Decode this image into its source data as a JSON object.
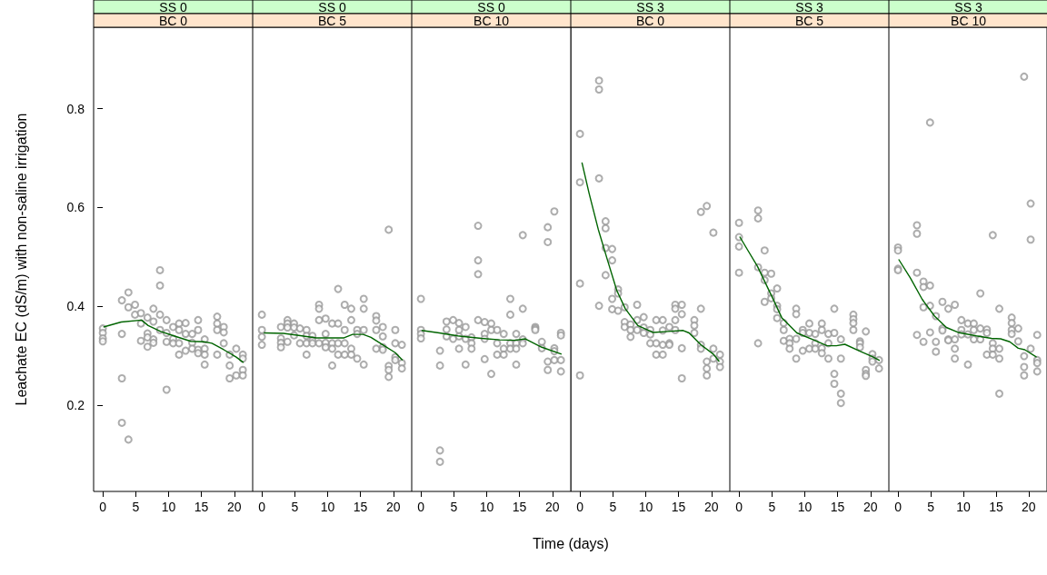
{
  "chart_data": [
    {
      "type": "scatter",
      "title": "SS 0",
      "subtitle": "BC 0",
      "ylabel": "Leachate EC (dS/m) with non-saline irrigation",
      "xlim": [
        -1.4,
        22.8
      ],
      "xticks": [
        0,
        5,
        10,
        15,
        20
      ],
      "ylim": [
        0.025,
        0.965
      ],
      "yticks": [
        0.2,
        0.4,
        0.6,
        0.8
      ],
      "grid": false,
      "series": [
        {
          "type": "scatter",
          "marker": "circle",
          "color": "#999999",
          "x": [
            0,
            0,
            0,
            0,
            2.9,
            2.9,
            2.9,
            2.9,
            3.9,
            3.9,
            3.9,
            4.9,
            4.9,
            5.8,
            5.8,
            5.8,
            6.8,
            6.8,
            6.8,
            6.8,
            7.7,
            7.7,
            7.7,
            7.7,
            8.7,
            8.7,
            8.7,
            8.7,
            9.7,
            9.7,
            9.7,
            9.7,
            10.7,
            10.7,
            10.7,
            11.6,
            11.6,
            11.6,
            11.6,
            12.6,
            12.6,
            12.6,
            13.6,
            13.6,
            13.6,
            14.5,
            14.5,
            14.5,
            14.5,
            15.5,
            15.5,
            15.5,
            15.5,
            17.4,
            17.4,
            17.4,
            17.4,
            18.4,
            18.4,
            18.4,
            19.3,
            19.3,
            19.3,
            20.3,
            20.3,
            21.3,
            21.3,
            21.3,
            21.3
          ],
          "values": [
            0.355,
            0.346,
            0.335,
            0.329,
            0.412,
            0.344,
            0.254,
            0.164,
            0.428,
            0.398,
            0.13,
            0.403,
            0.383,
            0.386,
            0.365,
            0.33,
            0.377,
            0.345,
            0.337,
            0.318,
            0.395,
            0.369,
            0.333,
            0.326,
            0.473,
            0.442,
            0.383,
            0.352,
            0.372,
            0.346,
            0.328,
            0.231,
            0.358,
            0.334,
            0.325,
            0.365,
            0.352,
            0.325,
            0.302,
            0.366,
            0.344,
            0.31,
            0.344,
            0.326,
            0.314,
            0.372,
            0.352,
            0.312,
            0.305,
            0.333,
            0.314,
            0.302,
            0.282,
            0.379,
            0.365,
            0.352,
            0.302,
            0.358,
            0.347,
            0.325,
            0.302,
            0.28,
            0.254,
            0.314,
            0.26,
            0.302,
            0.294,
            0.271,
            0.26
          ]
        },
        {
          "type": "line",
          "color": "#006400",
          "x": [
            0.1,
            2.8,
            5.9,
            6.9,
            8.8,
            10.6,
            13.4,
            15.4,
            16.6,
            18.4,
            20.3,
            21.4
          ],
          "values": [
            0.358,
            0.368,
            0.372,
            0.361,
            0.349,
            0.341,
            0.329,
            0.328,
            0.325,
            0.312,
            0.297,
            0.286
          ]
        }
      ]
    },
    {
      "type": "scatter",
      "title": "SS 0",
      "subtitle": "BC 5",
      "xlim": [
        -1.4,
        22.8
      ],
      "xticks": [
        0,
        5,
        10,
        15,
        20
      ],
      "ylim": [
        0.025,
        0.965
      ],
      "yticks": [
        0.2,
        0.4,
        0.6,
        0.8
      ],
      "tick_labels": "x",
      "grid": false,
      "series": [
        {
          "type": "scatter",
          "marker": "circle",
          "color": "#999999",
          "x": [
            0,
            0,
            0,
            0,
            2.9,
            2.9,
            2.9,
            2.9,
            3.9,
            3.9,
            3.9,
            3.9,
            4.9,
            4.9,
            4.9,
            5.8,
            5.8,
            6.8,
            6.8,
            6.8,
            6.8,
            7.7,
            7.7,
            7.7,
            8.7,
            8.7,
            8.7,
            8.7,
            9.7,
            9.7,
            9.7,
            9.7,
            10.7,
            10.7,
            10.7,
            10.7,
            11.6,
            11.6,
            11.6,
            11.6,
            12.6,
            12.6,
            12.6,
            12.6,
            13.6,
            13.6,
            13.6,
            13.6,
            14.5,
            14.5,
            14.5,
            15.5,
            15.5,
            15.5,
            15.5,
            17.4,
            17.4,
            17.4,
            17.4,
            18.4,
            18.4,
            18.4,
            18.4,
            19.3,
            19.3,
            19.3,
            19.3,
            20.3,
            20.3,
            20.3,
            20.3,
            21.3,
            21.3,
            21.3
          ],
          "values": [
            0.383,
            0.352,
            0.338,
            0.322,
            0.358,
            0.335,
            0.326,
            0.317,
            0.372,
            0.365,
            0.357,
            0.328,
            0.365,
            0.357,
            0.341,
            0.355,
            0.325,
            0.352,
            0.34,
            0.325,
            0.302,
            0.34,
            0.331,
            0.325,
            0.403,
            0.395,
            0.372,
            0.325,
            0.375,
            0.344,
            0.326,
            0.317,
            0.365,
            0.325,
            0.314,
            0.28,
            0.435,
            0.365,
            0.325,
            0.302,
            0.403,
            0.352,
            0.325,
            0.302,
            0.395,
            0.372,
            0.314,
            0.302,
            0.352,
            0.344,
            0.294,
            0.415,
            0.395,
            0.352,
            0.282,
            0.38,
            0.371,
            0.352,
            0.314,
            0.358,
            0.339,
            0.317,
            0.312,
            0.555,
            0.279,
            0.271,
            0.257,
            0.352,
            0.325,
            0.297,
            0.291,
            0.322,
            0.285,
            0.274
          ]
        },
        {
          "type": "line",
          "color": "#006400",
          "x": [
            0.3,
            3.3,
            5.6,
            8.3,
            12.5,
            13.8,
            15.4,
            16.6,
            18.4,
            20.3,
            21.4
          ],
          "values": [
            0.346,
            0.345,
            0.341,
            0.336,
            0.336,
            0.343,
            0.343,
            0.337,
            0.322,
            0.306,
            0.291
          ]
        }
      ]
    },
    {
      "type": "scatter",
      "title": "SS 0",
      "subtitle": "BC 10",
      "xlabel": "Time (days)",
      "xlim": [
        -1.4,
        22.8
      ],
      "xticks": [
        0,
        5,
        10,
        15,
        20
      ],
      "ylim": [
        0.025,
        0.965
      ],
      "yticks": [
        0.2,
        0.4,
        0.6,
        0.8
      ],
      "tick_labels": "x",
      "grid": false,
      "series": [
        {
          "type": "scatter",
          "marker": "circle",
          "color": "#999999",
          "x": [
            0,
            0,
            0,
            0,
            2.9,
            2.9,
            2.9,
            2.9,
            3.9,
            3.9,
            3.9,
            4.9,
            4.9,
            5.8,
            5.8,
            5.8,
            5.8,
            6.8,
            6.8,
            6.8,
            7.7,
            7.7,
            7.7,
            8.7,
            8.7,
            8.7,
            8.7,
            9.7,
            9.7,
            9.7,
            9.7,
            10.7,
            10.7,
            10.7,
            11.6,
            11.6,
            11.6,
            12.6,
            12.6,
            12.6,
            13.6,
            13.6,
            13.6,
            13.6,
            14.5,
            14.5,
            14.5,
            14.5,
            15.5,
            15.5,
            15.5,
            15.5,
            17.4,
            17.4,
            17.4,
            18.4,
            18.4,
            19.3,
            19.3,
            19.3,
            19.3,
            20.3,
            20.3,
            20.3,
            20.3,
            21.3,
            21.3,
            21.3,
            21.3
          ],
          "values": [
            0.415,
            0.352,
            0.344,
            0.335,
            0.31,
            0.28,
            0.108,
            0.085,
            0.369,
            0.353,
            0.339,
            0.372,
            0.334,
            0.366,
            0.352,
            0.339,
            0.314,
            0.358,
            0.334,
            0.282,
            0.337,
            0.325,
            0.314,
            0.563,
            0.493,
            0.465,
            0.372,
            0.368,
            0.344,
            0.334,
            0.293,
            0.365,
            0.352,
            0.263,
            0.352,
            0.325,
            0.302,
            0.344,
            0.314,
            0.302,
            0.415,
            0.383,
            0.325,
            0.314,
            0.344,
            0.325,
            0.314,
            0.282,
            0.544,
            0.395,
            0.333,
            0.325,
            0.358,
            0.355,
            0.352,
            0.328,
            0.315,
            0.56,
            0.53,
            0.288,
            0.271,
            0.592,
            0.315,
            0.309,
            0.291,
            0.346,
            0.341,
            0.291,
            0.268
          ]
        },
        {
          "type": "line",
          "color": "#006400",
          "x": [
            0.1,
            2.8,
            5.6,
            9.2,
            12.0,
            14.3,
            15.9,
            18.4,
            21.4
          ],
          "values": [
            0.351,
            0.346,
            0.34,
            0.335,
            0.332,
            0.331,
            0.334,
            0.317,
            0.303
          ]
        }
      ]
    },
    {
      "type": "scatter",
      "title": "SS 3",
      "subtitle": "BC 0",
      "xlim": [
        -1.4,
        22.8
      ],
      "xticks": [
        0,
        5,
        10,
        15,
        20
      ],
      "ylim": [
        0.025,
        0.965
      ],
      "yticks": [
        0.2,
        0.4,
        0.6,
        0.8
      ],
      "tick_labels": "x",
      "grid": false,
      "series": [
        {
          "type": "scatter",
          "marker": "circle",
          "color": "#999999",
          "x": [
            0,
            0,
            0,
            0,
            2.9,
            2.9,
            2.9,
            2.9,
            3.9,
            3.9,
            3.9,
            3.9,
            4.9,
            4.9,
            4.9,
            4.9,
            5.8,
            5.8,
            5.8,
            6.8,
            6.8,
            6.8,
            7.7,
            7.7,
            7.7,
            8.7,
            8.7,
            8.7,
            9.7,
            9.7,
            9.7,
            10.7,
            10.7,
            10.7,
            11.6,
            11.6,
            11.6,
            12.6,
            12.6,
            12.6,
            12.6,
            13.6,
            13.6,
            13.6,
            14.5,
            14.5,
            14.5,
            14.5,
            15.5,
            15.5,
            15.5,
            15.5,
            17.4,
            17.4,
            17.4,
            18.4,
            18.4,
            18.4,
            18.4,
            19.3,
            19.3,
            19.3,
            19.3,
            20.3,
            20.3,
            20.3,
            21.3,
            21.3,
            21.3
          ],
          "values": [
            0.749,
            0.651,
            0.446,
            0.26,
            0.857,
            0.839,
            0.659,
            0.401,
            0.572,
            0.558,
            0.518,
            0.463,
            0.516,
            0.493,
            0.415,
            0.394,
            0.434,
            0.426,
            0.391,
            0.398,
            0.368,
            0.358,
            0.363,
            0.352,
            0.338,
            0.403,
            0.372,
            0.352,
            0.378,
            0.357,
            0.346,
            0.352,
            0.343,
            0.325,
            0.372,
            0.325,
            0.302,
            0.372,
            0.351,
            0.322,
            0.302,
            0.358,
            0.325,
            0.322,
            0.403,
            0.395,
            0.372,
            0.352,
            0.403,
            0.384,
            0.315,
            0.254,
            0.372,
            0.361,
            0.346,
            0.591,
            0.395,
            0.322,
            0.314,
            0.603,
            0.288,
            0.274,
            0.26,
            0.549,
            0.314,
            0.294,
            0.302,
            0.288,
            0.277
          ]
        },
        {
          "type": "line",
          "color": "#006400",
          "x": [
            0.3,
            1.4,
            2.8,
            4.2,
            5.6,
            6.9,
            8.8,
            11.1,
            13.4,
            15.7,
            16.6,
            18.4,
            20.3,
            21.2
          ],
          "values": [
            0.691,
            0.628,
            0.555,
            0.493,
            0.432,
            0.395,
            0.361,
            0.347,
            0.349,
            0.351,
            0.346,
            0.322,
            0.303,
            0.288
          ]
        }
      ]
    },
    {
      "type": "scatter",
      "title": "SS 3",
      "subtitle": "BC 5",
      "xlim": [
        -1.4,
        22.8
      ],
      "xticks": [
        0,
        5,
        10,
        15,
        20
      ],
      "ylim": [
        0.025,
        0.965
      ],
      "yticks": [
        0.2,
        0.4,
        0.6,
        0.8
      ],
      "tick_labels": "x",
      "grid": false,
      "series": [
        {
          "type": "scatter",
          "marker": "circle",
          "color": "#999999",
          "x": [
            0,
            0,
            0,
            0,
            2.9,
            2.9,
            2.9,
            2.9,
            3.9,
            3.9,
            3.9,
            3.9,
            4.9,
            4.9,
            4.9,
            5.8,
            5.8,
            5.8,
            5.8,
            6.8,
            6.8,
            6.8,
            7.7,
            7.7,
            7.7,
            8.7,
            8.7,
            8.7,
            8.7,
            9.7,
            9.7,
            9.7,
            10.7,
            10.7,
            10.7,
            11.6,
            11.6,
            11.6,
            12.6,
            12.6,
            12.6,
            12.6,
            13.6,
            13.6,
            13.6,
            14.5,
            14.5,
            14.5,
            14.5,
            15.5,
            15.5,
            15.5,
            15.5,
            17.4,
            17.4,
            17.4,
            17.4,
            18.4,
            18.4,
            18.4,
            19.3,
            19.3,
            19.3,
            19.3,
            20.3,
            20.3,
            20.3,
            21.3,
            21.3
          ],
          "values": [
            0.569,
            0.54,
            0.521,
            0.468,
            0.594,
            0.578,
            0.479,
            0.325,
            0.513,
            0.468,
            0.453,
            0.409,
            0.466,
            0.426,
            0.416,
            0.436,
            0.401,
            0.394,
            0.376,
            0.366,
            0.352,
            0.33,
            0.334,
            0.325,
            0.314,
            0.395,
            0.384,
            0.334,
            0.294,
            0.352,
            0.346,
            0.31,
            0.365,
            0.346,
            0.314,
            0.344,
            0.325,
            0.314,
            0.365,
            0.352,
            0.315,
            0.305,
            0.344,
            0.325,
            0.294,
            0.395,
            0.346,
            0.263,
            0.243,
            0.333,
            0.294,
            0.223,
            0.204,
            0.383,
            0.374,
            0.366,
            0.352,
            0.329,
            0.325,
            0.317,
            0.349,
            0.271,
            0.263,
            0.259,
            0.303,
            0.294,
            0.288,
            0.291,
            0.274
          ]
        },
        {
          "type": "line",
          "color": "#006400",
          "x": [
            0.1,
            1.4,
            2.8,
            5.1,
            6.5,
            8.8,
            11.5,
            13.4,
            14.8,
            16.1,
            18.4,
            20.3,
            21.4
          ],
          "values": [
            0.541,
            0.512,
            0.481,
            0.417,
            0.377,
            0.346,
            0.331,
            0.32,
            0.32,
            0.323,
            0.309,
            0.298,
            0.29
          ]
        }
      ]
    },
    {
      "type": "scatter",
      "title": "SS 3",
      "subtitle": "BC 10",
      "xlim": [
        -1.4,
        22.8
      ],
      "xticks": [
        0,
        5,
        10,
        15,
        20
      ],
      "ylim": [
        0.025,
        0.965
      ],
      "yticks": [
        0.2,
        0.4,
        0.6,
        0.8
      ],
      "tick_labels": "x",
      "grid": false,
      "series": [
        {
          "type": "scatter",
          "marker": "circle",
          "color": "#999999",
          "x": [
            0,
            0,
            0,
            0,
            2.9,
            2.9,
            2.9,
            2.9,
            3.9,
            3.9,
            3.9,
            3.9,
            4.9,
            4.9,
            4.9,
            4.9,
            5.8,
            5.8,
            5.8,
            6.8,
            6.8,
            6.8,
            7.7,
            7.7,
            7.7,
            8.7,
            8.7,
            8.7,
            8.7,
            9.7,
            9.7,
            9.7,
            10.7,
            10.7,
            10.7,
            11.6,
            11.6,
            11.6,
            12.6,
            12.6,
            12.6,
            13.6,
            13.6,
            13.6,
            14.5,
            14.5,
            14.5,
            14.5,
            15.5,
            15.5,
            15.5,
            15.5,
            17.4,
            17.4,
            17.4,
            17.4,
            18.4,
            18.4,
            19.3,
            19.3,
            19.3,
            19.3,
            20.3,
            20.3,
            20.3,
            21.3,
            21.3,
            21.3,
            21.3
          ],
          "values": [
            0.519,
            0.513,
            0.476,
            0.473,
            0.564,
            0.547,
            0.468,
            0.342,
            0.45,
            0.439,
            0.398,
            0.328,
            0.772,
            0.442,
            0.401,
            0.347,
            0.38,
            0.328,
            0.308,
            0.409,
            0.355,
            0.351,
            0.395,
            0.333,
            0.331,
            0.403,
            0.333,
            0.314,
            0.294,
            0.372,
            0.352,
            0.343,
            0.365,
            0.343,
            0.282,
            0.365,
            0.352,
            0.333,
            0.426,
            0.355,
            0.333,
            0.353,
            0.346,
            0.302,
            0.544,
            0.325,
            0.314,
            0.302,
            0.395,
            0.314,
            0.294,
            0.223,
            0.377,
            0.366,
            0.352,
            0.344,
            0.355,
            0.329,
            0.865,
            0.299,
            0.277,
            0.26,
            0.608,
            0.535,
            0.314,
            0.342,
            0.291,
            0.285,
            0.268
          ]
        },
        {
          "type": "line",
          "color": "#006400",
          "x": [
            0.1,
            1.9,
            3.7,
            5.6,
            7.4,
            9.2,
            12.0,
            14.3,
            15.7,
            17.1,
            18.4,
            19.4,
            21.2
          ],
          "values": [
            0.495,
            0.457,
            0.414,
            0.38,
            0.357,
            0.347,
            0.34,
            0.335,
            0.334,
            0.328,
            0.315,
            0.312,
            0.297
          ]
        }
      ]
    }
  ]
}
